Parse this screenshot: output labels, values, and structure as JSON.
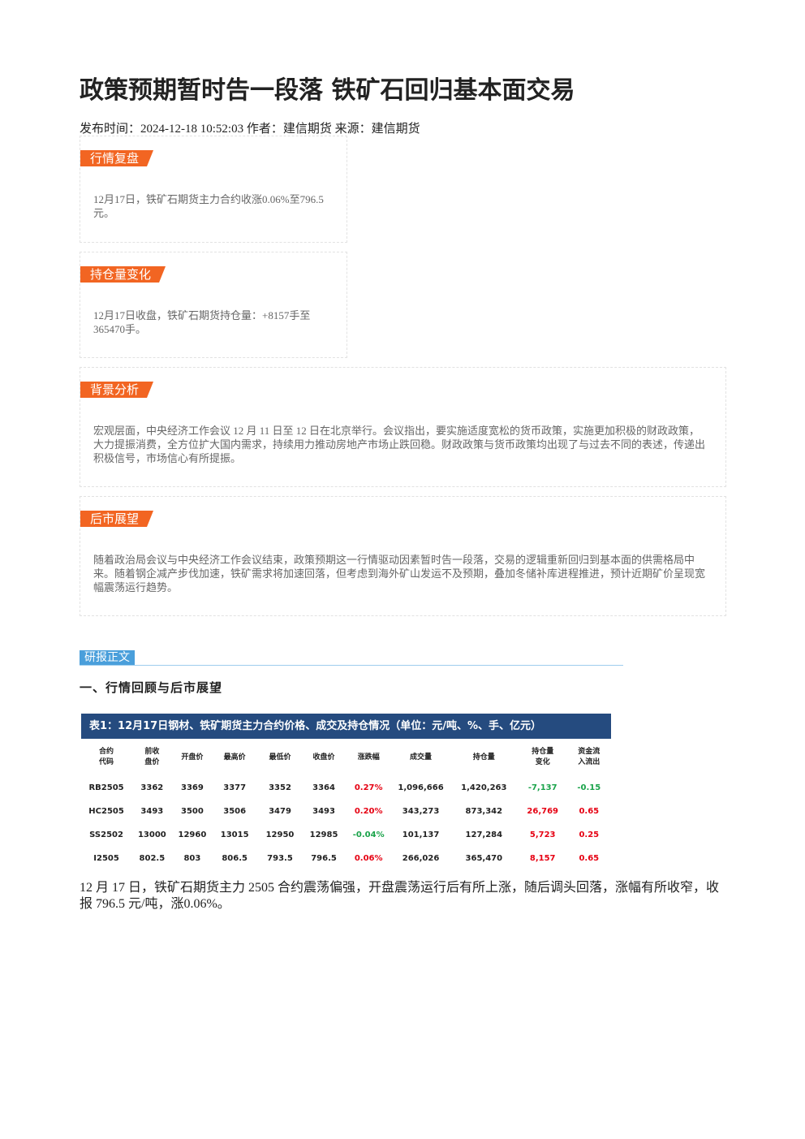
{
  "header": {
    "title": "政策预期暂时告一段落 铁矿石回归基本面交易",
    "meta": "发布时间：2024-12-18 10:52:03 作者：建信期货 来源：建信期货"
  },
  "sections": [
    {
      "label": "行情复盘",
      "text": "12月17日，铁矿石期货主力合约收涨0.06%至796.5元。"
    },
    {
      "label": "持仓量变化",
      "text": "12月17日收盘，铁矿石期货持仓量：+8157手至365470手。"
    },
    {
      "label": "背景分析",
      "text": "宏观层面，中央经济工作会议 12 月 11 日至 12 日在北京举行。会议指出，要实施适度宽松的货币政策，实施更加积极的财政政策，大力提振消费，全方位扩大国内需求，持续用力推动房地产市场止跌回稳。财政政策与货币政策均出现了与过去不同的表述，传递出积极信号，市场信心有所提振。"
    },
    {
      "label": "后市展望",
      "text": "随着政治局会议与中央经济工作会议结束，政策预期这一行情驱动因素暂时告一段落，交易的逻辑重新回归到基本面的供需格局中来。随着钢企减产步伐加速，铁矿需求将加速回落，但考虑到海外矿山发运不及预期，叠加冬储补库进程推进，预计近期矿价呈现宽幅震荡运行趋势。"
    }
  ],
  "body": {
    "tag": "研报正文",
    "heading": "一、行情回顾与后市展望",
    "table": {
      "caption": "表1：12月17日钢材、铁矿期货主力合约价格、成交及持仓情况（单位：元/吨、%、手、亿元）",
      "columns": [
        "合约\n代码",
        "前收\n盘价",
        "开盘价",
        "最高价",
        "最低价",
        "收盘价",
        "涨跌幅",
        "成交量",
        "持仓量",
        "持仓量\n变化",
        "资金流\n入流出"
      ],
      "rows": [
        [
          "RB2505",
          "3362",
          "3369",
          "3377",
          "3352",
          "3364",
          "0.27%",
          "1,096,666",
          "1,420,263",
          "-7,137",
          "-0.15"
        ],
        [
          "HC2505",
          "3493",
          "3500",
          "3506",
          "3479",
          "3493",
          "0.20%",
          "343,273",
          "873,342",
          "26,769",
          "0.65"
        ],
        [
          "SS2502",
          "13000",
          "12960",
          "13015",
          "12950",
          "12985",
          "-0.04%",
          "101,137",
          "127,284",
          "5,723",
          "0.25"
        ],
        [
          "I2505",
          "802.5",
          "803",
          "806.5",
          "793.5",
          "796.5",
          "0.06%",
          "266,026",
          "365,470",
          "8,157",
          "0.65"
        ]
      ],
      "colored_columns": [
        6,
        9,
        10
      ],
      "up_color": "#e60012",
      "down_color": "#1aa34a"
    },
    "paragraph": "12 月 17 日，铁矿石期货主力 2505 合约震荡偏强，开盘震荡运行后有所上涨，随后调头回落，涨幅有所收窄，收报 796.5 元/吨，涨0.06%。"
  }
}
